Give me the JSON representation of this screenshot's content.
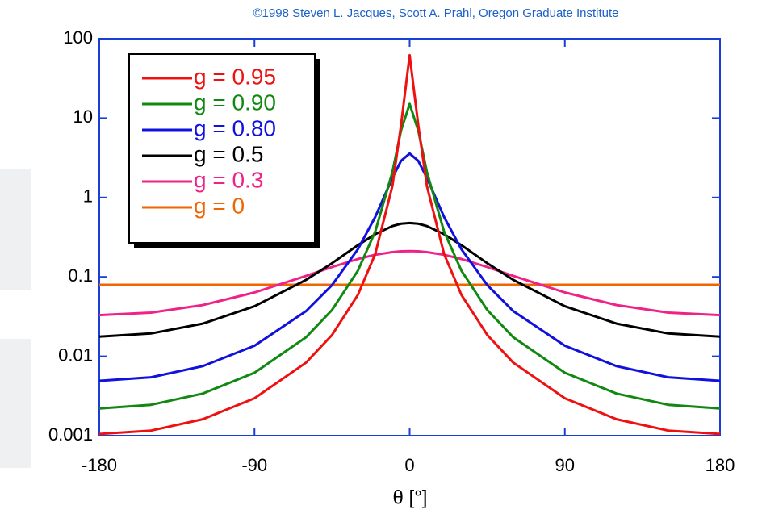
{
  "chart_data": {
    "type": "line",
    "title": "©1998 Steven L. Jacques, Scott A. Prahl, Oregon Graduate Institute",
    "x_label": "θ [°]",
    "x": [
      -180,
      -150,
      -120,
      -90,
      -60,
      -45,
      -30,
      -20,
      -10,
      -5,
      0,
      5,
      10,
      20,
      30,
      45,
      60,
      90,
      120,
      150,
      180
    ],
    "series": [
      {
        "name": "g = 0.95",
        "color": "#ee1111",
        "values": [
          0.00105,
          0.00116,
          0.00161,
          0.00296,
          0.00835,
          0.0186,
          0.0595,
          0.194,
          1.39,
          8.12,
          62.1,
          8.12,
          1.39,
          0.194,
          0.0595,
          0.0186,
          0.00835,
          0.00296,
          0.00161,
          0.00116,
          0.00105
        ]
      },
      {
        "name": "g = 0.90",
        "color": "#118811",
        "values": [
          0.0022,
          0.00245,
          0.00339,
          0.00621,
          0.0174,
          0.0384,
          0.12,
          0.371,
          2.09,
          6.95,
          15.1,
          6.95,
          2.09,
          0.371,
          0.12,
          0.0384,
          0.0174,
          0.00621,
          0.00339,
          0.00245,
          0.0022
        ]
      },
      {
        "name": "g = 0.80",
        "color": "#1111dd",
        "values": [
          0.00491,
          0.00544,
          0.00752,
          0.0136,
          0.0372,
          0.079,
          0.223,
          0.568,
          1.76,
          2.89,
          3.58,
          2.89,
          1.76,
          0.568,
          0.223,
          0.079,
          0.0372,
          0.0136,
          0.00752,
          0.00544,
          0.00491
        ]
      },
      {
        "name": "g = 0.5",
        "color": "#000000",
        "values": [
          0.0177,
          0.0194,
          0.0258,
          0.0427,
          0.0919,
          0.149,
          0.251,
          0.345,
          0.437,
          0.467,
          0.477,
          0.467,
          0.437,
          0.345,
          0.251,
          0.149,
          0.0919,
          0.0427,
          0.0258,
          0.0194,
          0.0177
        ]
      },
      {
        "name": "g = 0.3",
        "color": "#ee2288",
        "values": [
          0.033,
          0.0355,
          0.0442,
          0.0636,
          0.103,
          0.133,
          0.168,
          0.19,
          0.205,
          0.21,
          0.211,
          0.21,
          0.205,
          0.19,
          0.168,
          0.133,
          0.103,
          0.0636,
          0.0442,
          0.0355,
          0.033
        ]
      },
      {
        "name": "g = 0",
        "color": "#ee6600",
        "values": [
          0.0796,
          0.0796,
          0.0796,
          0.0796,
          0.0796,
          0.0796,
          0.0796,
          0.0796,
          0.0796,
          0.0796,
          0.0796,
          0.0796,
          0.0796,
          0.0796,
          0.0796,
          0.0796,
          0.0796,
          0.0796,
          0.0796,
          0.0796,
          0.0796
        ]
      }
    ],
    "xlim": [
      -180,
      180
    ],
    "xticks": [
      -180,
      -90,
      0,
      90,
      180
    ],
    "ylim": [
      0.001,
      100
    ],
    "yticks": [
      0.001,
      0.01,
      0.1,
      1,
      10,
      100
    ],
    "log_y": true,
    "axis_color": "#1a3fd8"
  }
}
